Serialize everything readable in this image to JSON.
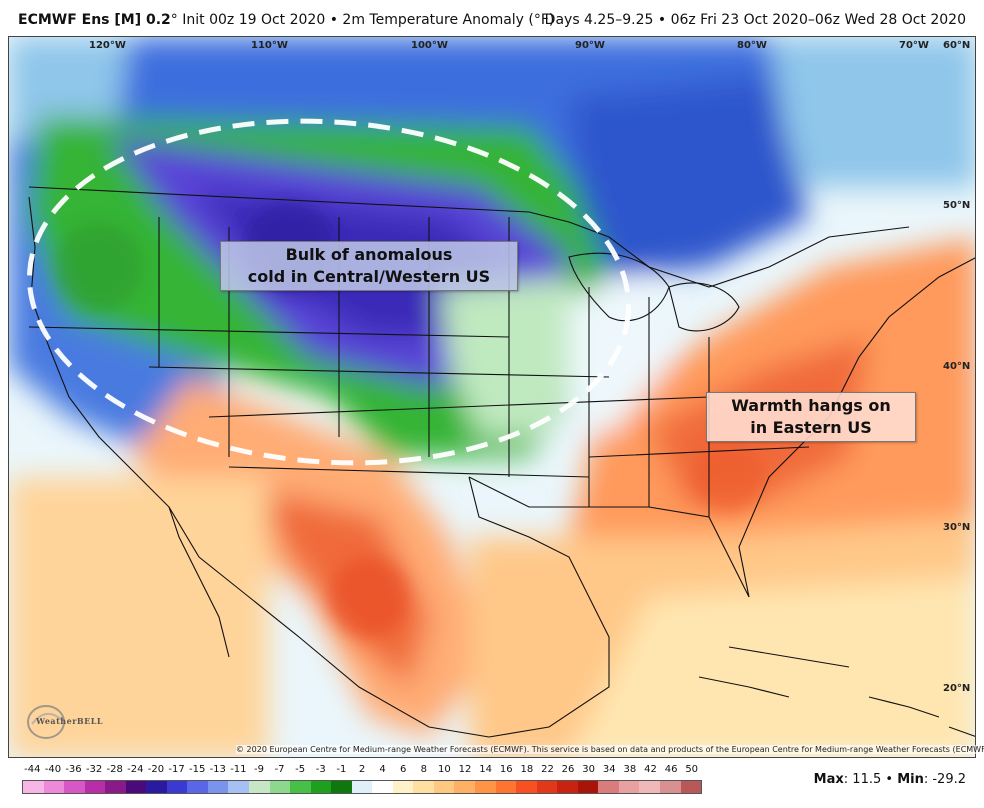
{
  "header": {
    "model": "ECMWF Ens [M] 0.2",
    "degree": "°",
    "init": "Init 00z 19 Oct 2020",
    "separator": " • ",
    "product": "2m Temperature Anomaly (°F)",
    "right": "Days 4.25–9.25 • 06z Fri 23 Oct 2020–06z Wed 28 Oct 2020"
  },
  "map": {
    "longitude_labels": [
      "120°W",
      "110°W",
      "100°W",
      "90°W",
      "80°W",
      "70°W"
    ],
    "latitude_labels": [
      "60°N",
      "50°N",
      "40°N",
      "30°N",
      "20°N"
    ],
    "annotations": {
      "cold_line1": "Bulk of anomalous",
      "cold_line2": "cold in Central/Western US",
      "warm_line1": "Warmth hangs on",
      "warm_line2": "in Eastern US"
    },
    "logo_text": "WeatherBELL",
    "copyright": "© 2020 European Centre for Medium-range Weather Forecasts (ECMWF). This service is based on data and products of the European Centre for Medium-range Weather Forecasts (ECMWF)."
  },
  "legend": {
    "labels": [
      "-44",
      "-40",
      "-36",
      "-32",
      "-28",
      "-24",
      "-20",
      "-17",
      "-15",
      "-13",
      "-11",
      "-9",
      "-7",
      "-5",
      "-3",
      "-1",
      "2",
      "4",
      "6",
      "8",
      "10",
      "12",
      "14",
      "16",
      "18",
      "22",
      "26",
      "30",
      "34",
      "38",
      "42",
      "46",
      "50"
    ],
    "colors": [
      "#f7b6e6",
      "#ee88d8",
      "#d857c6",
      "#b82ea8",
      "#8a1a8a",
      "#4b0a7a",
      "#2a1aa0",
      "#3a3ad0",
      "#5a66e8",
      "#7a94ee",
      "#a6c0f4",
      "#c6e6c6",
      "#8ed88e",
      "#48c048",
      "#1ea01e",
      "#0e780e",
      "#dff0fa",
      "#ffffff",
      "#fff2c8",
      "#ffe0a0",
      "#ffc880",
      "#ffb064",
      "#ff9446",
      "#ff7430",
      "#f85020",
      "#e03818",
      "#c82210",
      "#a81408",
      "#d87c7c",
      "#e8a0a0",
      "#f0b8b8",
      "#d89090",
      "#b85858"
    ],
    "colors_legend_hot": [
      "#d87c7c",
      "#e8a0a0",
      "#b44040",
      "#8a1414"
    ]
  },
  "stats": {
    "max_label": "Max",
    "max_value": ": 11.5",
    "sep": " • ",
    "min_label": "Min",
    "min_value": ": -29.2"
  }
}
